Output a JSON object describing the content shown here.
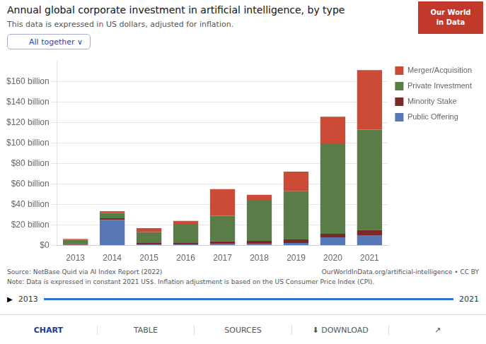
{
  "chart_data": {
    "type": "bar",
    "stacked": true,
    "title": "Annual global corporate investment in artificial intelligence, by type",
    "subtitle": "This data is expressed in US dollars, adjusted for inflation.",
    "categories": [
      "2013",
      "2014",
      "2015",
      "2016",
      "2017",
      "2018",
      "2019",
      "2020",
      "2021"
    ],
    "series": [
      {
        "name": "Public Offering",
        "color": "#5777b5",
        "values": [
          0.5,
          25.0,
          1.0,
          1.0,
          1.5,
          1.5,
          2.5,
          8.0,
          10.0
        ]
      },
      {
        "name": "Minority Stake",
        "color": "#7b2828",
        "values": [
          1.0,
          1.5,
          2.0,
          2.0,
          2.5,
          3.0,
          3.5,
          3.5,
          5.0
        ]
      },
      {
        "name": "Private Investment",
        "color": "#5a7c47",
        "values": [
          4.0,
          5.0,
          10.0,
          18.0,
          25.0,
          40.0,
          47.0,
          88.0,
          98.0
        ]
      },
      {
        "name": "Merger/Acquisition",
        "color": "#cc4b37",
        "values": [
          1.0,
          2.0,
          4.0,
          3.0,
          26.0,
          5.0,
          19.0,
          26.0,
          58.0
        ]
      }
    ],
    "ylim": [
      0,
      180
    ],
    "yticks": [
      {
        "value": 0,
        "label": "$0"
      },
      {
        "value": 20,
        "label": "$20 billion"
      },
      {
        "value": 40,
        "label": "$40 billion"
      },
      {
        "value": 60,
        "label": "$60 billion"
      },
      {
        "value": 80,
        "label": "$80 billion"
      },
      {
        "value": 100,
        "label": "$100 billion"
      },
      {
        "value": 120,
        "label": "$120 billion"
      },
      {
        "value": 140,
        "label": "$140 billion"
      },
      {
        "value": 160,
        "label": "$160 billion"
      }
    ],
    "grid": "y",
    "legend": "right",
    "annotations": [
      "Our World",
      "in Data",
      "All together",
      "∨",
      "Source: NetBase Quid via AI Index Report (2022)",
      "OurWorldInData.org/artificial-intelligence • CC BY",
      "Note: Data is expressed in constant 2021 US$. Inflation adjustment is based on the US Consumer Price Index (CPI).",
      "▶",
      "2013",
      "2021",
      "CHART",
      "TABLE",
      "SOURCES",
      "⬇ DOWNLOAD",
      "↗"
    ]
  }
}
